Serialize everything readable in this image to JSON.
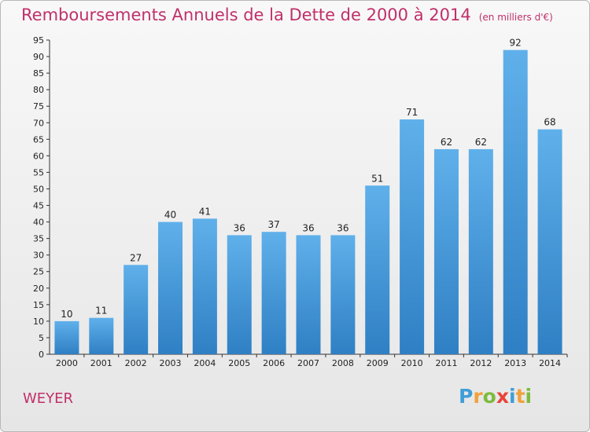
{
  "header": {
    "title": "Remboursements Annuels de la Dette de 2000 à 2014",
    "unit": "(en milliers d'€)"
  },
  "footer": {
    "commune": "WEYER",
    "logo_text": "Proxiti"
  },
  "colors": {
    "title": "#c0306a",
    "bar_top": "#5fb0ea",
    "bar_bottom": "#2f7fc4",
    "axis": "#333333"
  },
  "chart_data": {
    "type": "bar",
    "title": "Remboursements Annuels de la Dette de 2000 à 2014",
    "xlabel": "",
    "ylabel": "",
    "categories": [
      "2000",
      "2001",
      "2002",
      "2003",
      "2004",
      "2005",
      "2006",
      "2007",
      "2008",
      "2009",
      "2010",
      "2011",
      "2012",
      "2013",
      "2014"
    ],
    "values": [
      10,
      11,
      27,
      40,
      41,
      36,
      37,
      36,
      36,
      51,
      71,
      62,
      62,
      92,
      68
    ],
    "ylim": [
      0,
      95
    ],
    "yticks": [
      0,
      5,
      10,
      15,
      20,
      25,
      30,
      35,
      40,
      45,
      50,
      55,
      60,
      65,
      70,
      75,
      80,
      85,
      90,
      95
    ],
    "grid": false,
    "legend": "none"
  }
}
